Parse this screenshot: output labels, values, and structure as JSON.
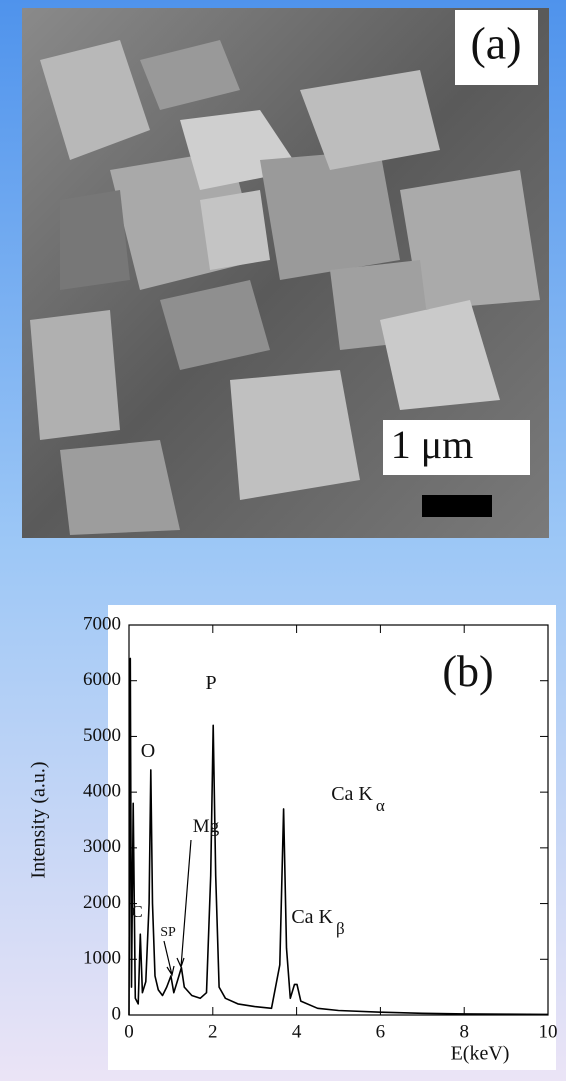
{
  "image": {
    "label": "(a)",
    "scale_label": "1 μm"
  },
  "chart_data": {
    "type": "line",
    "panel_label": "(b)",
    "x_label": "E(keV)",
    "y_label": "Intensity (a.u.)",
    "x": [
      0,
      0.03,
      0.06,
      0.1,
      0.15,
      0.22,
      0.27,
      0.32,
      0.4,
      0.48,
      0.52,
      0.56,
      0.62,
      0.7,
      0.8,
      0.9,
      1.0,
      1.07,
      1.15,
      1.25,
      1.32,
      1.5,
      1.7,
      1.85,
      1.95,
      2.01,
      2.07,
      2.15,
      2.3,
      2.6,
      3.0,
      3.4,
      3.6,
      3.69,
      3.76,
      3.85,
      3.95,
      4.01,
      4.1,
      4.5,
      5,
      6,
      7,
      8,
      9,
      10
    ],
    "values": [
      0,
      6400,
      500,
      3800,
      300,
      200,
      1450,
      400,
      600,
      2000,
      4400,
      2000,
      700,
      450,
      350,
      500,
      700,
      400,
      600,
      850,
      500,
      350,
      300,
      400,
      2500,
      5200,
      2500,
      500,
      300,
      200,
      150,
      120,
      900,
      3700,
      1200,
      300,
      550,
      550,
      250,
      120,
      80,
      50,
      30,
      20,
      15,
      10
    ],
    "color": "#000000",
    "xlim": [
      0,
      10
    ],
    "xticks": [
      0,
      2,
      4,
      6,
      8,
      10
    ],
    "ylim": [
      0,
      7000
    ],
    "yticks": [
      0,
      1000,
      2000,
      3000,
      4000,
      5000,
      6000,
      7000
    ],
    "annotations": [
      {
        "text": "C"
      },
      {
        "text": "O"
      },
      {
        "text": "P"
      },
      {
        "text": "Mg"
      },
      {
        "text": "SP"
      },
      {
        "text": "Ca K",
        "subscript": "α"
      },
      {
        "text": "Ca K",
        "subscript": "β"
      }
    ]
  }
}
